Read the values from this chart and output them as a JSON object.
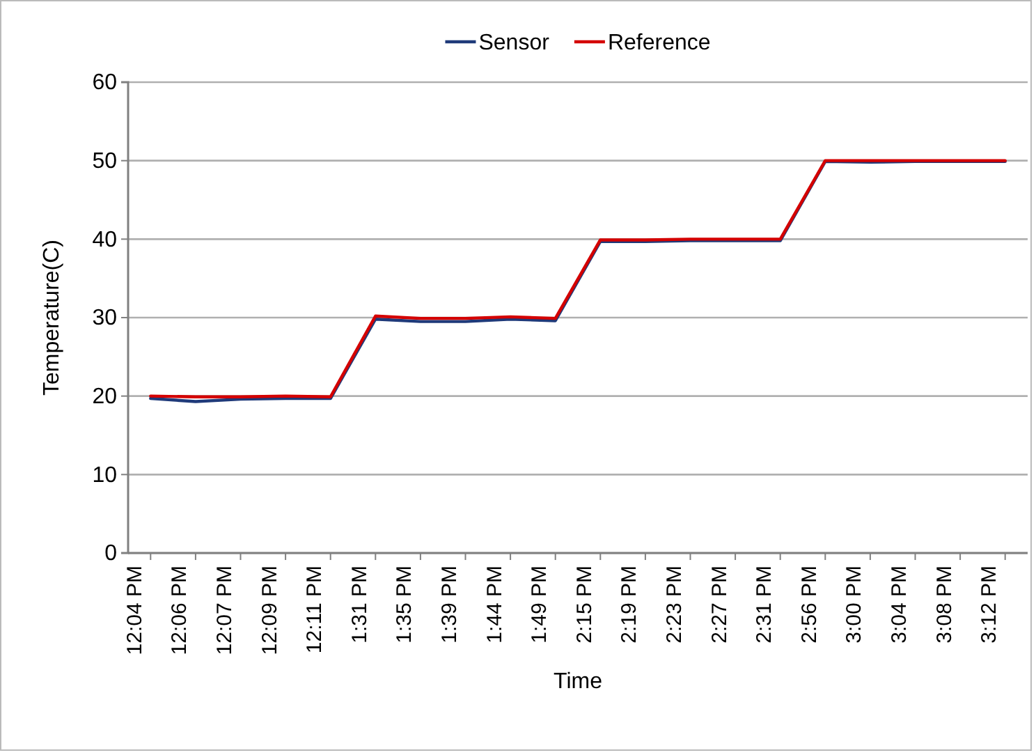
{
  "chart_data": {
    "type": "line",
    "xlabel": "Time",
    "ylabel": "Temperature(C)",
    "categories": [
      "12:04 PM",
      "12:06 PM",
      "12:07 PM",
      "12:09 PM",
      "12:11 PM",
      "1:31 PM",
      "1:35 PM",
      "1:39 PM",
      "1:44 PM",
      "1:49 PM",
      "2:15 PM",
      "2:19 PM",
      "2:23 PM",
      "2:27 PM",
      "2:31 PM",
      "2:56 PM",
      "3:00 PM",
      "3:04 PM",
      "3:08 PM",
      "3:12 PM"
    ],
    "series": [
      {
        "name": "Sensor",
        "color": "#1f3a7a",
        "values": [
          19.7,
          19.3,
          19.6,
          19.7,
          19.7,
          29.8,
          29.5,
          29.5,
          29.8,
          29.6,
          39.7,
          39.7,
          39.8,
          39.8,
          39.8,
          49.9,
          49.8,
          49.9,
          49.9,
          49.9
        ]
      },
      {
        "name": "Reference",
        "color": "#d40000",
        "values": [
          20.0,
          19.9,
          19.9,
          20.0,
          19.9,
          30.2,
          29.9,
          29.9,
          30.1,
          29.9,
          39.9,
          39.9,
          40.0,
          40.0,
          40.0,
          50.0,
          50.0,
          50.0,
          50.0,
          50.0
        ]
      }
    ],
    "ylim": [
      0,
      60
    ],
    "yticks": [
      0,
      10,
      20,
      30,
      40,
      50,
      60
    ],
    "grid": "y",
    "legend": "top",
    "marker": "none",
    "line_style": "solid"
  }
}
